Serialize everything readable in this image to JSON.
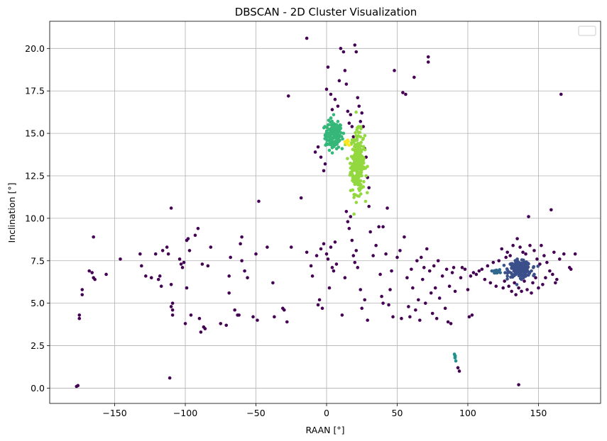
{
  "chart_data": {
    "type": "scatter",
    "title": "DBSCAN - 2D Cluster Visualization",
    "xlabel": "RAAN [°]",
    "ylabel": "Inclination [°]",
    "xlim": [
      -196,
      194
    ],
    "ylim": [
      -0.9,
      21.6
    ],
    "xticks": [
      -150,
      -100,
      -50,
      0,
      50,
      100,
      150
    ],
    "yticks": [
      0.0,
      2.5,
      5.0,
      7.5,
      10.0,
      12.5,
      15.0,
      17.5,
      20.0
    ],
    "xtick_labels": [
      "−150",
      "−100",
      "−50",
      "0",
      "50",
      "100",
      "150"
    ],
    "ytick_labels": [
      "0.0",
      "2.5",
      "5.0",
      "7.5",
      "10.0",
      "12.5",
      "15.0",
      "17.5",
      "20.0"
    ],
    "grid": true,
    "legend": "top-right",
    "colors": {
      "noise": "#440154",
      "cluster_navy": "#3b4f8a",
      "cluster_blue_small": "#31688e",
      "cluster_teal": "#21918c",
      "cluster_green": "#35b779",
      "cluster_lime": "#94d840",
      "cluster_yellow": "#fde725"
    },
    "series": [
      {
        "color_key": "cluster_green",
        "center": [
          5,
          14.9
        ],
        "spread": [
          6,
          0.8
        ],
        "count": 150,
        "points": [
          [
            5,
            16.1
          ],
          [
            3,
            15.9
          ],
          [
            8,
            15.7
          ],
          [
            1,
            15.5
          ],
          [
            10,
            15.3
          ],
          [
            -1,
            14.9
          ],
          [
            12,
            15.0
          ],
          [
            0,
            14.4
          ],
          [
            4,
            14.2
          ],
          [
            11,
            14.1
          ],
          [
            2,
            14.0
          ],
          [
            7,
            15.0
          ]
        ]
      },
      {
        "color_key": "cluster_lime",
        "center": [
          22,
          13.3
        ],
        "spread": [
          5,
          1.8
        ],
        "count": 260,
        "points": [
          [
            22,
            15.3
          ],
          [
            24,
            14.8
          ],
          [
            19,
            13.5
          ],
          [
            26,
            13.0
          ],
          [
            20,
            12.0
          ],
          [
            25,
            11.8
          ],
          [
            23,
            11.3
          ],
          [
            17,
            12.7
          ],
          [
            28,
            12.5
          ],
          [
            22,
            14.2
          ]
        ]
      },
      {
        "color_key": "cluster_yellow",
        "center": [
          14.5,
          14.45
        ],
        "spread": [
          1.2,
          0.2
        ],
        "count": 10,
        "points": [
          [
            13,
            14.5
          ],
          [
            15,
            14.6
          ],
          [
            16,
            14.3
          ]
        ]
      },
      {
        "color_key": "cluster_navy",
        "center": [
          137,
          7.0
        ],
        "spread": [
          8,
          0.45
        ],
        "count": 180,
        "points": [
          [
            130,
            7.3
          ],
          [
            135,
            7.6
          ],
          [
            140,
            7.4
          ],
          [
            145,
            6.9
          ],
          [
            128,
            6.6
          ],
          [
            138,
            6.4
          ],
          [
            147,
            6.7
          ],
          [
            133,
            7.1
          ]
        ]
      },
      {
        "color_key": "cluster_blue_small",
        "center": [
          120,
          6.85
        ],
        "spread": [
          2.5,
          0.12
        ],
        "count": 22,
        "points": [
          [
            117,
            6.9
          ],
          [
            119,
            6.8
          ],
          [
            121,
            6.9
          ],
          [
            123,
            6.8
          ]
        ]
      },
      {
        "color_key": "cluster_teal",
        "center": [
          91,
          1.8
        ],
        "spread": [
          0.4,
          0.12
        ],
        "count": 6,
        "points": [
          [
            90.5,
            2.0
          ],
          [
            91,
            1.8
          ],
          [
            91.5,
            1.6
          ]
        ]
      },
      {
        "color_key": "noise",
        "count": 340,
        "points": [
          [
            -177,
            0.1
          ],
          [
            -176,
            0.15
          ],
          [
            -175,
            4.3
          ],
          [
            -175,
            4.1
          ],
          [
            -173,
            5.5
          ],
          [
            -173,
            5.8
          ],
          [
            -168,
            6.9
          ],
          [
            -166,
            6.8
          ],
          [
            -165,
            6.5
          ],
          [
            -164,
            6.4
          ],
          [
            -165,
            8.9
          ],
          [
            -156,
            6.7
          ],
          [
            -146,
            7.6
          ],
          [
            -132,
            7.9
          ],
          [
            -131,
            7.2
          ],
          [
            -128,
            6.6
          ],
          [
            -124,
            6.5
          ],
          [
            -121,
            7.9
          ],
          [
            -119,
            6.4
          ],
          [
            -118,
            6.6
          ],
          [
            -117,
            6.0
          ],
          [
            -116,
            8.1
          ],
          [
            -113,
            8.3
          ],
          [
            -112,
            7.9
          ],
          [
            -110,
            10.6
          ],
          [
            -110,
            4.8
          ],
          [
            -109,
            4.6
          ],
          [
            -109,
            5.0
          ],
          [
            -109,
            4.3
          ],
          [
            -110,
            6.1
          ],
          [
            -111,
            0.6
          ],
          [
            -104,
            7.6
          ],
          [
            -103,
            7.3
          ],
          [
            -102,
            7.1
          ],
          [
            -101,
            7.4
          ],
          [
            -100,
            3.8
          ],
          [
            -99,
            5.9
          ],
          [
            -99,
            8.7
          ],
          [
            -98,
            8.8
          ],
          [
            -97,
            8.1
          ],
          [
            -96,
            4.3
          ],
          [
            -93,
            9.0
          ],
          [
            -91,
            9.4
          ],
          [
            -90,
            4.1
          ],
          [
            -89,
            3.3
          ],
          [
            -88,
            7.3
          ],
          [
            -87,
            3.6
          ],
          [
            -86,
            3.5
          ],
          [
            -84,
            7.2
          ],
          [
            -82,
            8.3
          ],
          [
            -75,
            3.8
          ],
          [
            -71,
            3.7
          ],
          [
            -69,
            5.6
          ],
          [
            -69,
            6.6
          ],
          [
            -68,
            7.7
          ],
          [
            -65,
            4.6
          ],
          [
            -63,
            4.3
          ],
          [
            -62,
            4.3
          ],
          [
            -61,
            8.5
          ],
          [
            -60,
            8.9
          ],
          [
            -58,
            6.9
          ],
          [
            -60,
            7.5
          ],
          [
            -56,
            6.5
          ],
          [
            -52,
            4.2
          ],
          [
            -50,
            7.9
          ],
          [
            -49,
            4.0
          ],
          [
            -48,
            11.0
          ],
          [
            -42,
            8.3
          ],
          [
            -38,
            6.2
          ],
          [
            -37,
            4.2
          ],
          [
            -31,
            4.7
          ],
          [
            -30,
            4.6
          ],
          [
            -28,
            3.9
          ],
          [
            -25,
            8.3
          ],
          [
            -27,
            17.2
          ],
          [
            -18,
            11.2
          ],
          [
            -14,
            20.6
          ],
          [
            -14,
            8.0
          ],
          [
            -11,
            7.2
          ],
          [
            -10,
            6.6
          ],
          [
            -7,
            7.8
          ],
          [
            -6,
            4.9
          ],
          [
            -5,
            5.2
          ],
          [
            -4,
            8.2
          ],
          [
            -3,
            4.7
          ],
          [
            -2,
            8.5
          ],
          [
            0,
            7.9
          ],
          [
            1,
            7.6
          ],
          [
            2,
            5.9
          ],
          [
            3,
            8.3
          ],
          [
            4,
            7.1
          ],
          [
            5,
            6.9
          ],
          [
            6,
            8.6
          ],
          [
            7,
            7.3
          ],
          [
            -8,
            13.9
          ],
          [
            -6,
            14.2
          ],
          [
            -4,
            13.6
          ],
          [
            -2,
            12.8
          ],
          [
            -1,
            13.2
          ],
          [
            0,
            17.6
          ],
          [
            1,
            18.9
          ],
          [
            3,
            17.3
          ],
          [
            4,
            16.4
          ],
          [
            6,
            17.0
          ],
          [
            8,
            16.6
          ],
          [
            9,
            18.1
          ],
          [
            10,
            20.0
          ],
          [
            12,
            19.8
          ],
          [
            13,
            18.7
          ],
          [
            14,
            17.9
          ],
          [
            15,
            16.3
          ],
          [
            16,
            15.6
          ],
          [
            17,
            16.1
          ],
          [
            18,
            15.4
          ],
          [
            19,
            14.8
          ],
          [
            20,
            20.2
          ],
          [
            21,
            19.8
          ],
          [
            22,
            17.1
          ],
          [
            23,
            16.6
          ],
          [
            24,
            15.7
          ],
          [
            25,
            16.2
          ],
          [
            26,
            15.4
          ],
          [
            27,
            14.1
          ],
          [
            28,
            13.6
          ],
          [
            29,
            12.4
          ],
          [
            30,
            11.8
          ],
          [
            30,
            10.7
          ],
          [
            31,
            9.2
          ],
          [
            14,
            10.4
          ],
          [
            15,
            9.8
          ],
          [
            16,
            9.4
          ],
          [
            17,
            10.1
          ],
          [
            18,
            8.7
          ],
          [
            19,
            7.8
          ],
          [
            20,
            7.4
          ],
          [
            21,
            8.1
          ],
          [
            22,
            7.1
          ],
          [
            13,
            6.5
          ],
          [
            11,
            4.3
          ],
          [
            24,
            5.8
          ],
          [
            25,
            4.7
          ],
          [
            27,
            5.2
          ],
          [
            29,
            4.0
          ],
          [
            33,
            7.8
          ],
          [
            35,
            8.4
          ],
          [
            37,
            9.5
          ],
          [
            38,
            6.7
          ],
          [
            39,
            5.4
          ],
          [
            40,
            9.5
          ],
          [
            40,
            5.0
          ],
          [
            42,
            7.9
          ],
          [
            43,
            10.6
          ],
          [
            44,
            4.9
          ],
          [
            45,
            5.8
          ],
          [
            46,
            6.9
          ],
          [
            47,
            4.2
          ],
          [
            48,
            18.7
          ],
          [
            50,
            7.7
          ],
          [
            52,
            8.1
          ],
          [
            53,
            4.1
          ],
          [
            54,
            17.4
          ],
          [
            55,
            8.9
          ],
          [
            56,
            17.3
          ],
          [
            57,
            6.5
          ],
          [
            58,
            4.8
          ],
          [
            59,
            4.2
          ],
          [
            60,
            7.0
          ],
          [
            61,
            5.9
          ],
          [
            62,
            18.3
          ],
          [
            63,
            4.6
          ],
          [
            64,
            7.5
          ],
          [
            65,
            5.2
          ],
          [
            66,
            4.0
          ],
          [
            67,
            7.7
          ],
          [
            68,
            6.4
          ],
          [
            69,
            7.1
          ],
          [
            70,
            5.0
          ],
          [
            71,
            8.2
          ],
          [
            72,
            19.5
          ],
          [
            72,
            19.2
          ],
          [
            73,
            6.9
          ],
          [
            74,
            5.6
          ],
          [
            75,
            4.4
          ],
          [
            76,
            7.2
          ],
          [
            77,
            5.9
          ],
          [
            78,
            4.1
          ],
          [
            79,
            7.5
          ],
          [
            80,
            5.3
          ],
          [
            82,
            6.6
          ],
          [
            84,
            4.7
          ],
          [
            85,
            7.0
          ],
          [
            86,
            3.9
          ],
          [
            87,
            6.0
          ],
          [
            88,
            3.8
          ],
          [
            89,
            6.8
          ],
          [
            90,
            7.1
          ],
          [
            91,
            5.7
          ],
          [
            93,
            1.2
          ],
          [
            94,
            1.0
          ],
          [
            95,
            6.5
          ],
          [
            96,
            7.1
          ],
          [
            98,
            7.0
          ],
          [
            100,
            5.8
          ],
          [
            101,
            4.2
          ],
          [
            102,
            6.6
          ],
          [
            103,
            4.3
          ],
          [
            104,
            6.8
          ],
          [
            106,
            6.7
          ],
          [
            108,
            6.9
          ],
          [
            110,
            7.0
          ],
          [
            112,
            6.4
          ],
          [
            114,
            7.2
          ],
          [
            116,
            6.2
          ],
          [
            118,
            7.4
          ],
          [
            120,
            6.0
          ],
          [
            122,
            7.5
          ],
          [
            124,
            8.2
          ],
          [
            125,
            5.9
          ],
          [
            126,
            6.3
          ],
          [
            127,
            7.7
          ],
          [
            128,
            8.0
          ],
          [
            129,
            6.0
          ],
          [
            130,
            7.8
          ],
          [
            131,
            5.7
          ],
          [
            132,
            8.4
          ],
          [
            133,
            6.2
          ],
          [
            134,
            5.5
          ],
          [
            135,
            8.8
          ],
          [
            136,
            5.9
          ],
          [
            136,
            0.2
          ],
          [
            137,
            8.3
          ],
          [
            138,
            5.7
          ],
          [
            139,
            8.0
          ],
          [
            140,
            6.3
          ],
          [
            141,
            7.9
          ],
          [
            142,
            5.8
          ],
          [
            143,
            10.1
          ],
          [
            144,
            8.4
          ],
          [
            145,
            5.6
          ],
          [
            146,
            6.2
          ],
          [
            147,
            8.1
          ],
          [
            148,
            6.5
          ],
          [
            149,
            7.6
          ],
          [
            150,
            5.9
          ],
          [
            151,
            7.3
          ],
          [
            152,
            8.4
          ],
          [
            153,
            6.1
          ],
          [
            154,
            7.8
          ],
          [
            155,
            6.5
          ],
          [
            156,
            7.4
          ],
          [
            158,
            6.9
          ],
          [
            159,
            10.5
          ],
          [
            160,
            6.7
          ],
          [
            161,
            8.0
          ],
          [
            162,
            6.2
          ],
          [
            163,
            6.4
          ],
          [
            165,
            7.6
          ],
          [
            166,
            17.3
          ],
          [
            168,
            7.9
          ],
          [
            172,
            7.1
          ],
          [
            173,
            7.0
          ],
          [
            176,
            7.9
          ]
        ]
      }
    ]
  }
}
